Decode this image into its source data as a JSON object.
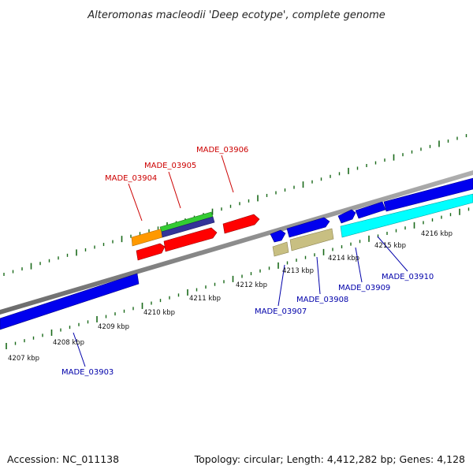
{
  "title": "Alteromonas macleodii 'Deep ecotype', complete genome",
  "footer": {
    "accession": "Accession: NC_011138",
    "summary": "Topology: circular; Length: 4,412,282 bp; Genes: 4,128"
  },
  "colors": {
    "backbone": "#888888",
    "tick": "#1a6a1a",
    "label_red": "#cc0000",
    "label_blue": "#0000aa"
  },
  "ticks": [
    {
      "label": "4207 kbp"
    },
    {
      "label": "4208 kbp"
    },
    {
      "label": "4209 kbp"
    },
    {
      "label": "4210 kbp"
    },
    {
      "label": "4211 kbp"
    },
    {
      "label": "4212 kbp"
    },
    {
      "label": "4213 kbp"
    },
    {
      "label": "4214 kbp"
    },
    {
      "label": "4215 kbp"
    },
    {
      "label": "4216 kbp"
    }
  ],
  "gene_labels": [
    {
      "text": "MADE_03903",
      "color": "#0000aa"
    },
    {
      "text": "MADE_03904",
      "color": "#cc0000"
    },
    {
      "text": "MADE_03905",
      "color": "#cc0000"
    },
    {
      "text": "MADE_03906",
      "color": "#cc0000"
    },
    {
      "text": "MADE_03907",
      "color": "#0000aa"
    },
    {
      "text": "MADE_03908",
      "color": "#0000aa"
    },
    {
      "text": "MADE_03909",
      "color": "#0000aa"
    },
    {
      "text": "MADE_03910",
      "color": "#0000aa"
    }
  ]
}
